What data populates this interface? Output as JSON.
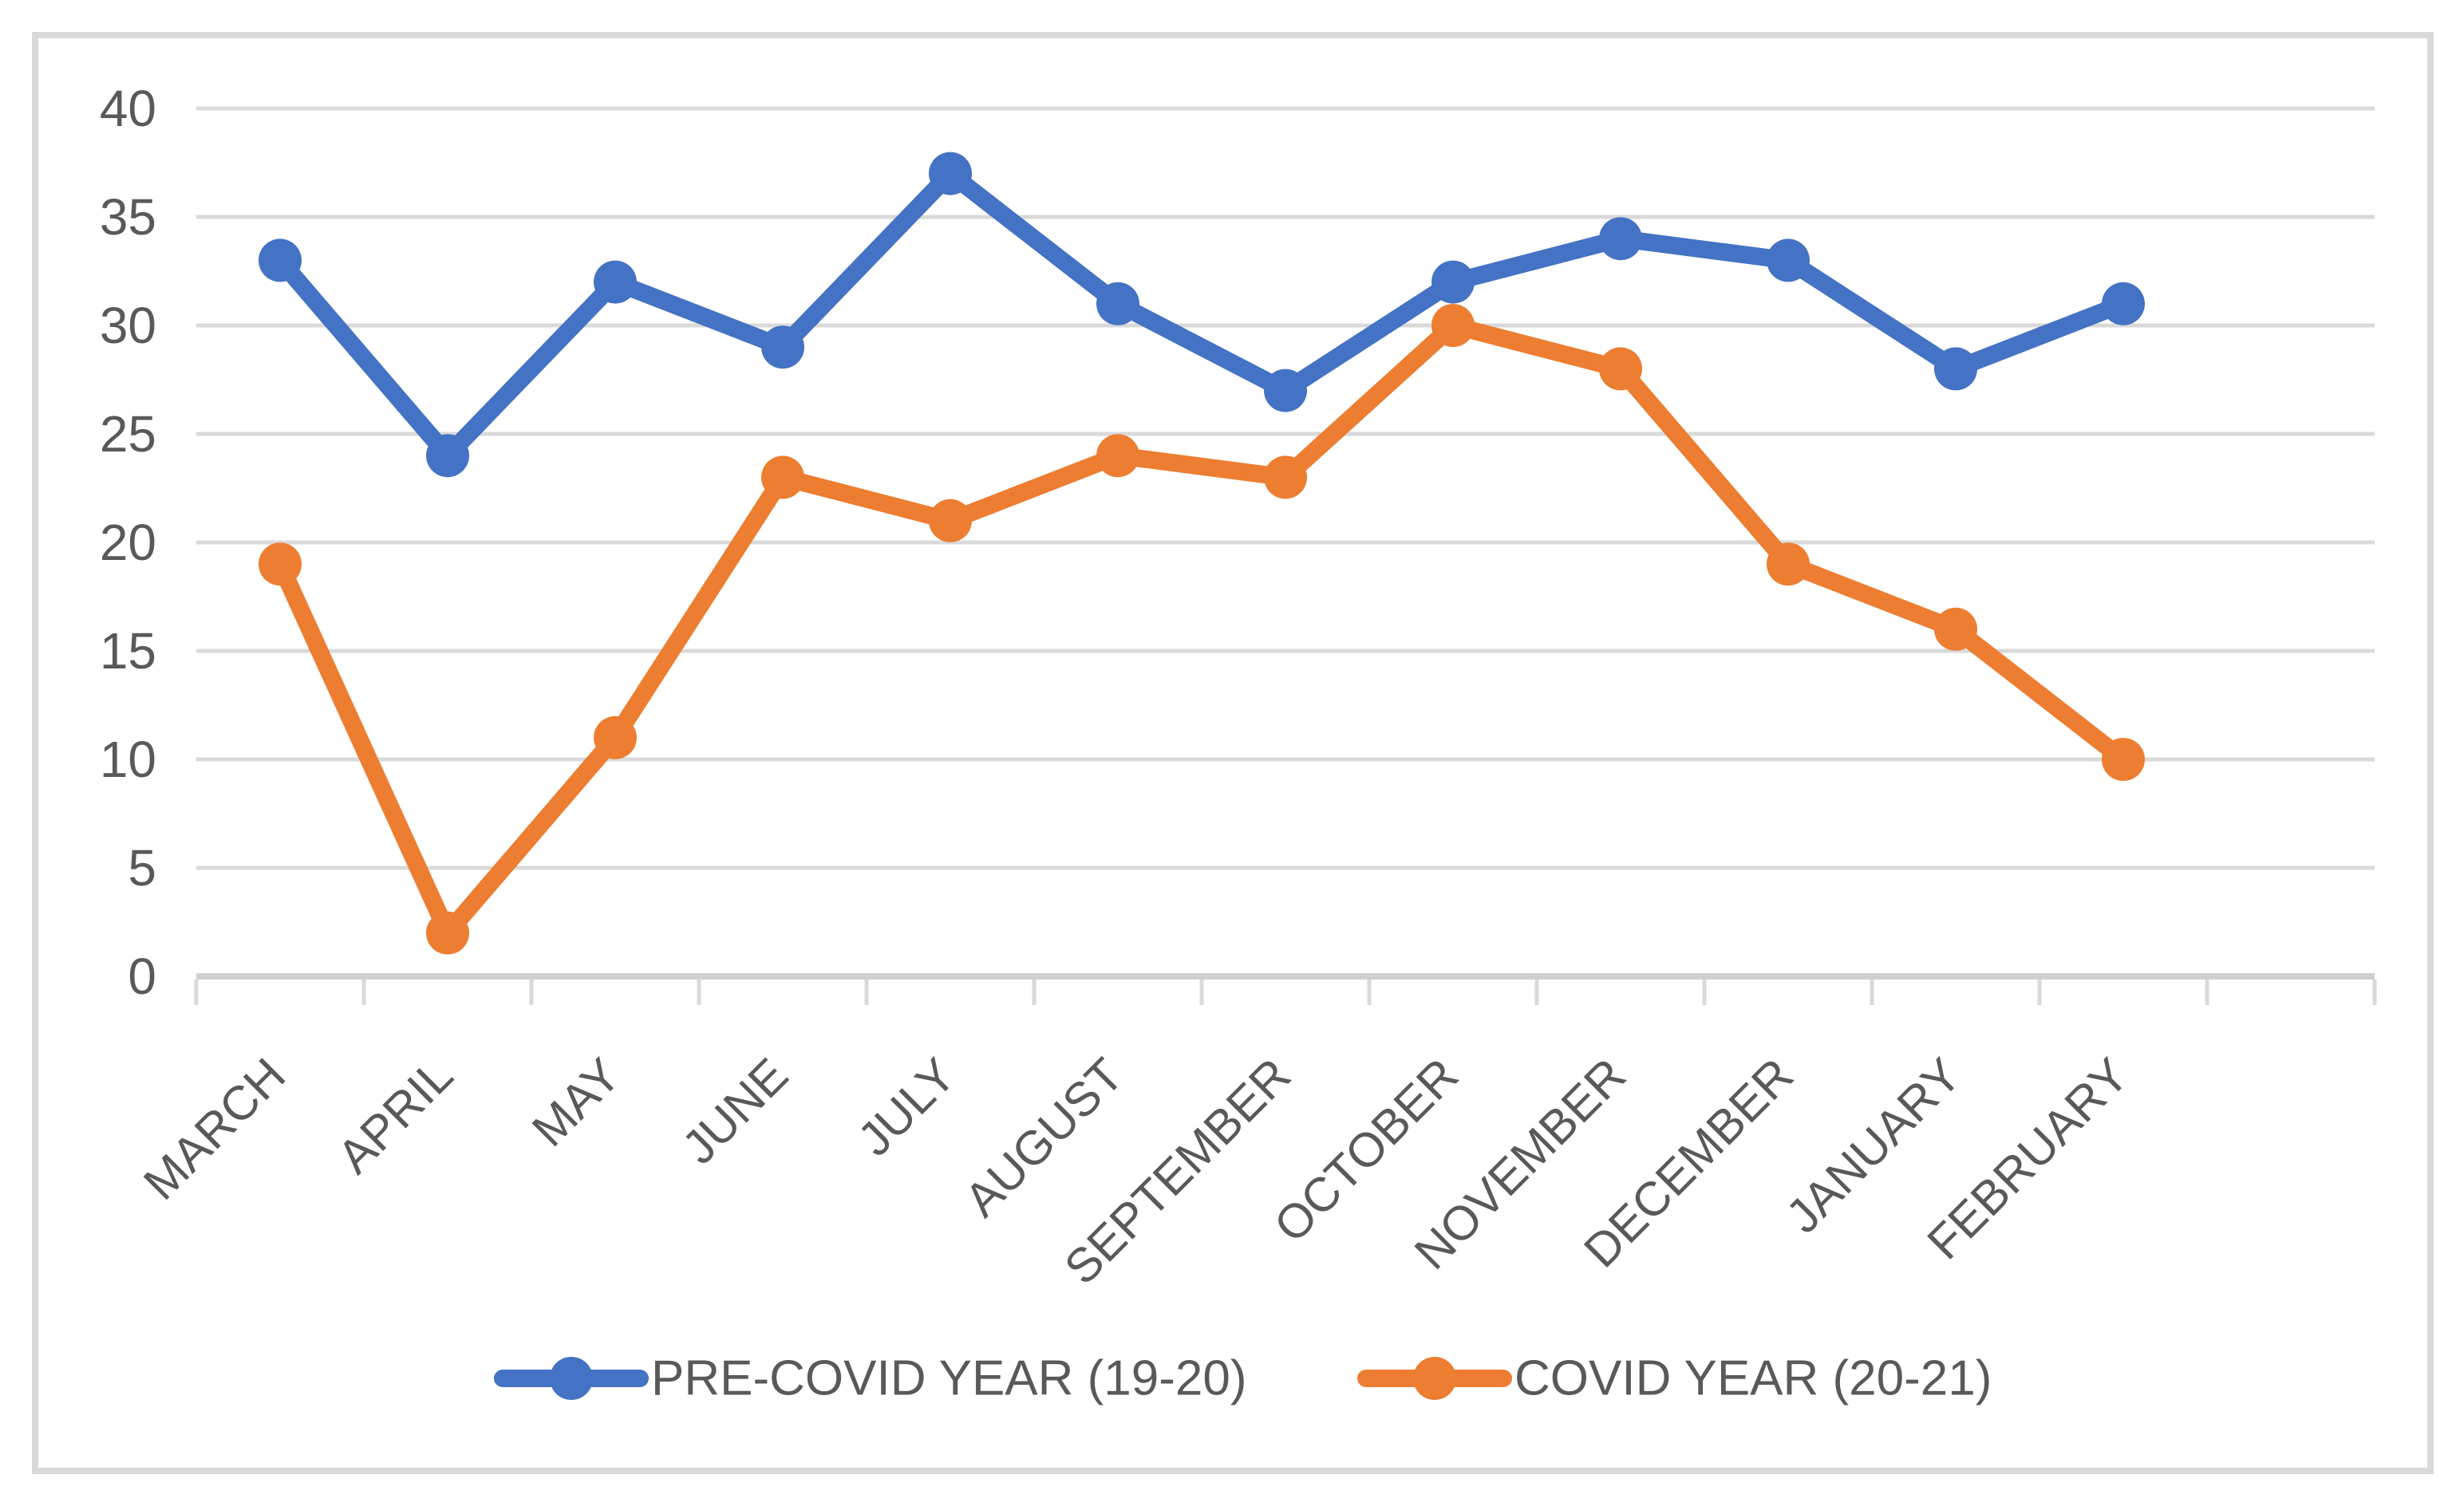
{
  "chart_data": {
    "type": "line",
    "title": "",
    "xlabel": "",
    "ylabel": "",
    "categories": [
      "MARCH",
      "APRIL",
      "MAY",
      "JUNE",
      "JULY",
      "AUGUST",
      "SEPTEMBER",
      "OCTOBER",
      "NOVEMBER",
      "DECEMBER",
      "JANUARY",
      "FEBRUARY"
    ],
    "series": [
      {
        "name": "PRE-COVID YEAR (19-20)",
        "color": "#4472C4",
        "marker": "circle",
        "values": [
          33,
          24,
          32,
          29,
          37,
          31,
          27,
          32,
          34,
          33,
          28,
          31
        ]
      },
      {
        "name": "COVID YEAR (20-21)",
        "color": "#ED7D31",
        "marker": "circle",
        "values": [
          19,
          2,
          11,
          23,
          21,
          24,
          23,
          30,
          28,
          19,
          16,
          10
        ]
      }
    ],
    "ylim": [
      0,
      40
    ],
    "yticks": [
      0,
      5,
      10,
      15,
      20,
      25,
      30,
      35,
      40
    ],
    "grid": true,
    "legend_position": "bottom",
    "x_labels_rotation_deg": -45,
    "empty_trailing_category_slot": true
  },
  "colors": {
    "background": "#FFFFFF",
    "chart_border": "#D9D9D9",
    "gridline": "#D9D9D9",
    "axis_line": "#CFCFCF",
    "tick": "#D9D9D9",
    "label": "#595959"
  }
}
